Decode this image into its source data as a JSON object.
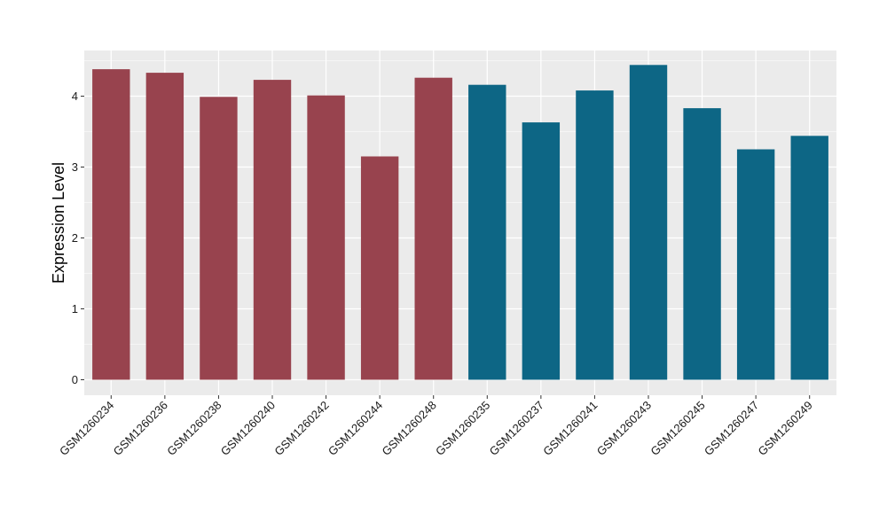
{
  "chart_data": {
    "type": "bar",
    "ylabel": "Expression Level",
    "xlabel": "",
    "title": "",
    "ylim": [
      0,
      4.6
    ],
    "yticks": [
      0,
      1,
      2,
      3,
      4
    ],
    "grid": true,
    "legend": "none",
    "background_color": "#ebebeb",
    "grid_color": "#ffffff",
    "categories": [
      "GSM1260234",
      "GSM1260236",
      "GSM1260238",
      "GSM1260240",
      "GSM1260242",
      "GSM1260244",
      "GSM1260248",
      "GSM1260235",
      "GSM1260237",
      "GSM1260241",
      "GSM1260243",
      "GSM1260245",
      "GSM1260247",
      "GSM1260249"
    ],
    "values": [
      4.38,
      4.33,
      3.99,
      4.23,
      4.01,
      3.15,
      4.26,
      4.16,
      3.63,
      4.08,
      4.44,
      3.83,
      3.25,
      3.44
    ],
    "bar_colors": [
      "#98434e",
      "#98434e",
      "#98434e",
      "#98434e",
      "#98434e",
      "#98434e",
      "#98434e",
      "#0d6685",
      "#0d6685",
      "#0d6685",
      "#0d6685",
      "#0d6685",
      "#0d6685",
      "#0d6685"
    ]
  }
}
